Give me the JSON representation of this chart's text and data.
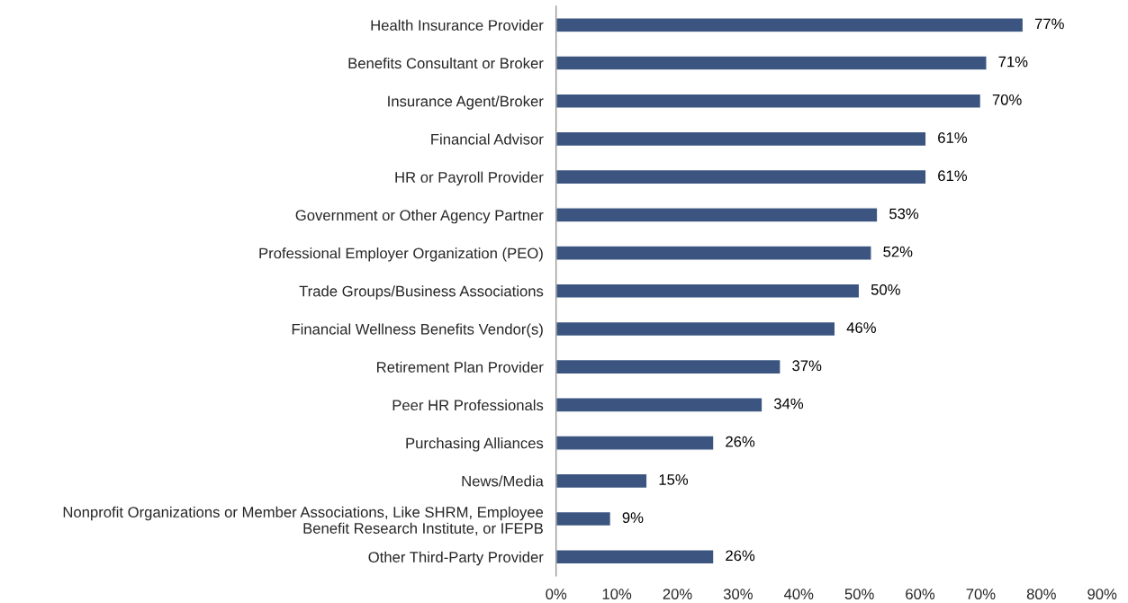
{
  "chart_data": {
    "type": "bar",
    "orientation": "horizontal",
    "categories": [
      "Health Insurance Provider",
      "Benefits Consultant or Broker",
      "Insurance Agent/Broker",
      "Financial Advisor",
      "HR or Payroll Provider",
      "Government or Other Agency Partner",
      "Professional Employer Organization (PEO)",
      "Trade Groups/Business Associations",
      "Financial Wellness Benefits Vendor(s)",
      "Retirement Plan Provider",
      "Peer HR Professionals",
      "Purchasing Alliances",
      "News/Media",
      "Nonprofit Organizations or Member Associations, Like SHRM, Employee\nBenefit Research Institute, or IFEPB",
      "Other Third-Party Provider"
    ],
    "values": [
      77,
      71,
      70,
      61,
      61,
      53,
      52,
      50,
      46,
      37,
      34,
      26,
      15,
      9,
      26
    ],
    "value_labels": [
      "77%",
      "71%",
      "70%",
      "61%",
      "61%",
      "53%",
      "52%",
      "50%",
      "46%",
      "37%",
      "34%",
      "26%",
      "15%",
      "9%",
      "26%"
    ],
    "color": "#3b5580",
    "xlim": [
      0,
      90
    ],
    "xticks": [
      {
        "value": 0,
        "label": "0%"
      },
      {
        "value": 10,
        "label": "10%"
      },
      {
        "value": 20,
        "label": "20%"
      },
      {
        "value": 30,
        "label": "30%"
      },
      {
        "value": 40,
        "label": "40%"
      },
      {
        "value": 50,
        "label": "50%"
      },
      {
        "value": 60,
        "label": "60%"
      },
      {
        "value": 70,
        "label": "70%"
      },
      {
        "value": 80,
        "label": "80%"
      },
      {
        "value": 90,
        "label": "90%"
      }
    ],
    "grid": false,
    "legend": false
  }
}
